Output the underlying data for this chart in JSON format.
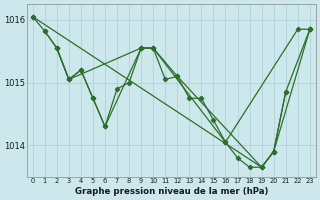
{
  "title": "Graphe pression niveau de la mer (hPa)",
  "bg_color": "#cce8ec",
  "grid_color": "#aacdd4",
  "line_color": "#2d6e2d",
  "xlim": [
    -0.5,
    23.5
  ],
  "ylim": [
    1013.5,
    1016.25
  ],
  "yticks": [
    1014,
    1015,
    1016
  ],
  "xticks": [
    0,
    1,
    2,
    3,
    4,
    5,
    6,
    7,
    8,
    9,
    10,
    11,
    12,
    13,
    14,
    15,
    16,
    17,
    18,
    19,
    20,
    21,
    22,
    23
  ],
  "line1_x": [
    0,
    1,
    2,
    3,
    9,
    10,
    16,
    22,
    23
  ],
  "line1_y": [
    1016.05,
    1015.82,
    1015.55,
    1015.05,
    1015.55,
    1015.55,
    1014.05,
    1015.85,
    1015.85
  ],
  "line2_x": [
    1,
    2,
    3,
    4,
    5,
    6,
    7,
    8,
    9,
    10,
    11,
    12,
    13,
    14,
    15,
    16,
    17,
    18,
    19,
    20,
    21
  ],
  "line2_y": [
    1015.82,
    1015.55,
    1015.05,
    1015.2,
    1014.75,
    1014.3,
    1014.9,
    1015.0,
    1015.55,
    1015.55,
    1015.05,
    1015.1,
    1014.75,
    1014.75,
    1014.4,
    1014.05,
    1013.8,
    1013.65,
    1013.65,
    1013.9,
    1014.85
  ],
  "line3_x": [
    2,
    3,
    4,
    5,
    6,
    9,
    10,
    12,
    19,
    20,
    21,
    23
  ],
  "line3_y": [
    1015.55,
    1015.05,
    1015.2,
    1014.75,
    1014.3,
    1015.55,
    1015.55,
    1015.1,
    1013.65,
    1013.9,
    1014.85,
    1015.85
  ],
  "line4_x": [
    0,
    19,
    20,
    23
  ],
  "line4_y": [
    1016.05,
    1013.65,
    1013.9,
    1015.85
  ]
}
